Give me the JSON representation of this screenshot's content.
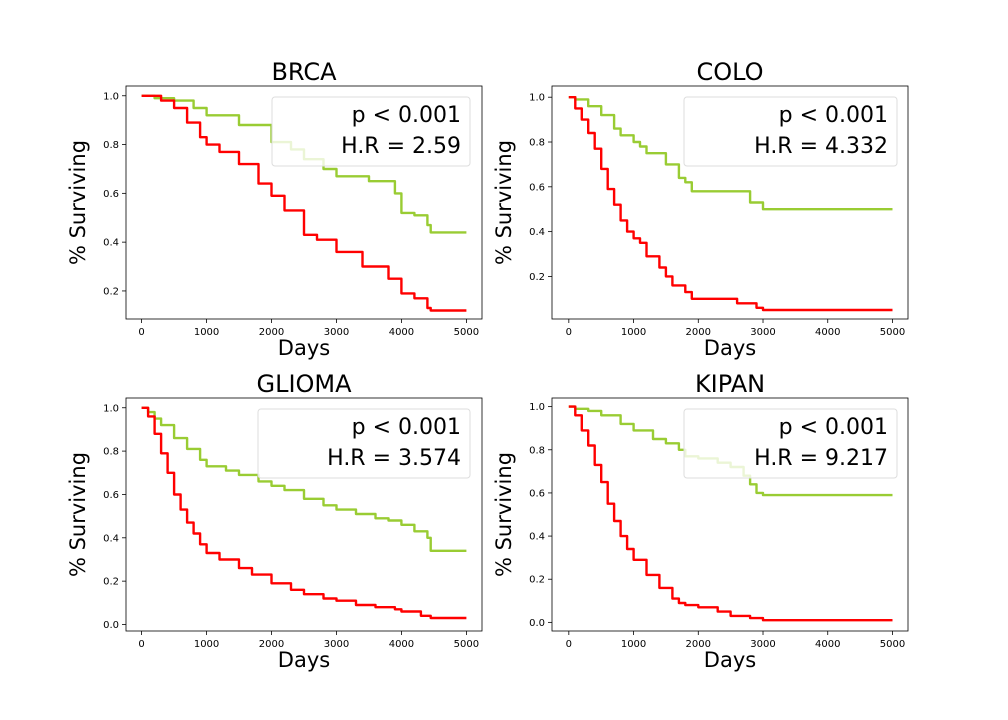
{
  "figure": {
    "colors": {
      "high_risk": "#ff0000",
      "low_risk": "#99cc33",
      "legend_frame": "#dddddd"
    }
  },
  "chart_data": [
    {
      "type": "line",
      "title": "BRCA",
      "xlabel": "Days",
      "ylabel": "% Surviving",
      "xlim": [
        -240,
        5240
      ],
      "ylim": [
        0.085,
        1.04
      ],
      "xticks": [
        0,
        1000,
        2000,
        3000,
        4000,
        5000
      ],
      "yticks": [
        0.2,
        0.4,
        0.6,
        0.8,
        1.0
      ],
      "ytick_labels": [
        "0.2",
        "0.4",
        "0.6",
        "0.8",
        "1.0"
      ],
      "legend": {
        "placement": "top-right",
        "lines": [
          "p < 0.001",
          "H.R = 2.59"
        ]
      },
      "series": [
        {
          "color": "#99cc33",
          "x": [
            0,
            200,
            500,
            800,
            1000,
            1500,
            2000,
            2300,
            2500,
            2800,
            3000,
            3500,
            3900,
            4000,
            4200,
            4400,
            4450,
            5000
          ],
          "y": [
            1.0,
            0.99,
            0.98,
            0.95,
            0.92,
            0.88,
            0.81,
            0.78,
            0.74,
            0.7,
            0.67,
            0.65,
            0.6,
            0.52,
            0.51,
            0.47,
            0.44,
            0.44
          ]
        },
        {
          "color": "#ff0000",
          "x": [
            0,
            150,
            300,
            500,
            700,
            900,
            1000,
            1200,
            1500,
            1800,
            2000,
            2200,
            2500,
            2700,
            3000,
            3400,
            3800,
            4000,
            4200,
            4400,
            4450,
            5000
          ],
          "y": [
            1.0,
            1.0,
            0.98,
            0.95,
            0.89,
            0.83,
            0.8,
            0.77,
            0.72,
            0.64,
            0.59,
            0.53,
            0.43,
            0.41,
            0.36,
            0.3,
            0.25,
            0.19,
            0.17,
            0.13,
            0.12,
            0.12
          ]
        }
      ]
    },
    {
      "type": "line",
      "title": "COLO",
      "xlabel": "Days",
      "ylabel": "% Surviving",
      "xlim": [
        -260,
        5240
      ],
      "ylim": [
        0.01,
        1.05
      ],
      "xticks": [
        0,
        1000,
        2000,
        3000,
        4000,
        5000
      ],
      "yticks": [
        0.2,
        0.4,
        0.6,
        0.8,
        1.0
      ],
      "ytick_labels": [
        "0.2",
        "0.4",
        "0.6",
        "0.8",
        "1.0"
      ],
      "legend": {
        "placement": "top-right",
        "lines": [
          "p < 0.001",
          "H.R = 4.332"
        ]
      },
      "series": [
        {
          "color": "#99cc33",
          "x": [
            0,
            100,
            300,
            500,
            700,
            800,
            1000,
            1100,
            1200,
            1500,
            1700,
            1800,
            1900,
            2500,
            2800,
            3000,
            5000
          ],
          "y": [
            1.0,
            0.99,
            0.96,
            0.92,
            0.86,
            0.83,
            0.8,
            0.78,
            0.75,
            0.7,
            0.64,
            0.62,
            0.58,
            0.58,
            0.53,
            0.5,
            0.5
          ]
        },
        {
          "color": "#ff0000",
          "x": [
            0,
            100,
            200,
            300,
            400,
            500,
            600,
            700,
            800,
            900,
            1000,
            1100,
            1200,
            1400,
            1500,
            1600,
            1800,
            1900,
            2400,
            2600,
            2800,
            2900,
            3000,
            5000
          ],
          "y": [
            1.0,
            0.95,
            0.9,
            0.84,
            0.77,
            0.68,
            0.59,
            0.52,
            0.45,
            0.4,
            0.37,
            0.35,
            0.29,
            0.24,
            0.2,
            0.16,
            0.13,
            0.1,
            0.1,
            0.08,
            0.08,
            0.06,
            0.05,
            0.05
          ]
        }
      ]
    },
    {
      "type": "line",
      "title": "GLIOMA",
      "xlabel": "Days",
      "ylabel": "% Surviving",
      "xlim": [
        -240,
        5240
      ],
      "ylim": [
        -0.03,
        1.045
      ],
      "xticks": [
        0,
        1000,
        2000,
        3000,
        4000,
        5000
      ],
      "yticks": [
        0.0,
        0.2,
        0.4,
        0.6,
        0.8,
        1.0
      ],
      "ytick_labels": [
        "0.0",
        "0.2",
        "0.4",
        "0.6",
        "0.8",
        "1.0"
      ],
      "legend": {
        "placement": "top-right",
        "lines": [
          "p < 0.001",
          "H.R = 3.574"
        ]
      },
      "series": [
        {
          "color": "#99cc33",
          "x": [
            0,
            100,
            200,
            300,
            500,
            700,
            900,
            1000,
            1300,
            1500,
            1800,
            2000,
            2200,
            2500,
            2800,
            3000,
            3300,
            3600,
            3800,
            4000,
            4200,
            4400,
            4450,
            5000
          ],
          "y": [
            1.0,
            0.98,
            0.95,
            0.92,
            0.86,
            0.81,
            0.76,
            0.73,
            0.71,
            0.69,
            0.66,
            0.64,
            0.62,
            0.58,
            0.55,
            0.53,
            0.51,
            0.49,
            0.48,
            0.46,
            0.43,
            0.4,
            0.34,
            0.34
          ]
        },
        {
          "color": "#ff0000",
          "x": [
            0,
            100,
            200,
            300,
            400,
            500,
            600,
            700,
            800,
            900,
            1000,
            1200,
            1500,
            1700,
            2000,
            2300,
            2500,
            2800,
            3000,
            3300,
            3600,
            3900,
            4000,
            4300,
            4450,
            5000
          ],
          "y": [
            1.0,
            0.96,
            0.88,
            0.79,
            0.7,
            0.6,
            0.53,
            0.47,
            0.42,
            0.37,
            0.33,
            0.3,
            0.26,
            0.23,
            0.19,
            0.16,
            0.14,
            0.12,
            0.11,
            0.09,
            0.08,
            0.07,
            0.06,
            0.04,
            0.03,
            0.03
          ]
        }
      ]
    },
    {
      "type": "line",
      "title": "KIPAN",
      "xlabel": "Days",
      "ylabel": "% Surviving",
      "xlim": [
        -260,
        5240
      ],
      "ylim": [
        -0.04,
        1.04
      ],
      "xticks": [
        0,
        1000,
        2000,
        3000,
        4000,
        5000
      ],
      "yticks": [
        0.0,
        0.2,
        0.4,
        0.6,
        0.8,
        1.0
      ],
      "ytick_labels": [
        "0.0",
        "0.2",
        "0.4",
        "0.6",
        "0.8",
        "1.0"
      ],
      "legend": {
        "placement": "top-right",
        "lines": [
          "p < 0.001",
          "H.R = 9.217"
        ]
      },
      "series": [
        {
          "color": "#99cc33",
          "x": [
            0,
            100,
            300,
            500,
            800,
            1000,
            1300,
            1500,
            1700,
            1800,
            2000,
            2300,
            2500,
            2700,
            2800,
            2900,
            3000,
            5000
          ],
          "y": [
            1.0,
            0.99,
            0.98,
            0.96,
            0.92,
            0.89,
            0.85,
            0.83,
            0.8,
            0.77,
            0.76,
            0.74,
            0.72,
            0.68,
            0.64,
            0.6,
            0.59,
            0.59
          ]
        },
        {
          "color": "#ff0000",
          "x": [
            0,
            100,
            200,
            300,
            400,
            500,
            600,
            700,
            800,
            900,
            1000,
            1200,
            1400,
            1600,
            1700,
            1800,
            2000,
            2300,
            2500,
            2800,
            3000,
            5000
          ],
          "y": [
            1.0,
            0.96,
            0.89,
            0.82,
            0.73,
            0.65,
            0.55,
            0.47,
            0.4,
            0.34,
            0.29,
            0.22,
            0.16,
            0.11,
            0.09,
            0.08,
            0.07,
            0.05,
            0.03,
            0.02,
            0.01,
            0.01
          ]
        }
      ]
    }
  ]
}
